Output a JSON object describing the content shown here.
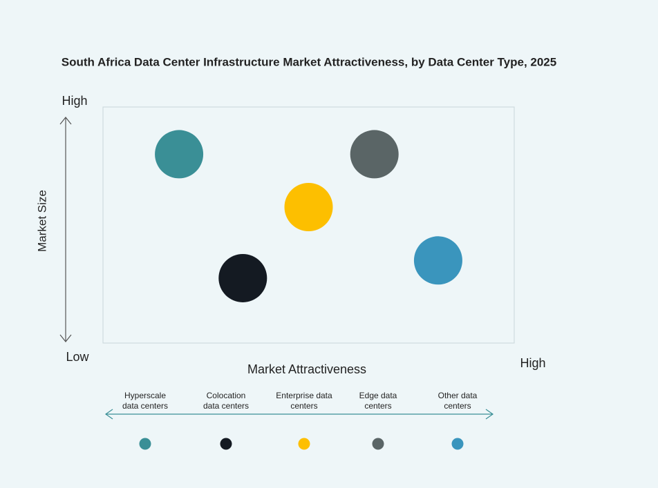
{
  "chart_data": {
    "type": "scatter",
    "title": "South Africa Data Center Infrastructure  Market Attractiveness,  by Data Center Type, 2025",
    "x_axis_label": "Market Attractiveness",
    "y_axis_label": "Market Size",
    "y_high_label": "High",
    "low_label": "Low",
    "x_high_label": "High",
    "xlim": [
      0,
      100
    ],
    "ylim": [
      0,
      100
    ],
    "series": [
      {
        "name": "Hyperscale data centers",
        "color": "#3a8f96",
        "x": [
          18.5
        ],
        "values": [
          80
        ]
      },
      {
        "name": "Colocation data centers",
        "color": "#141a22",
        "x": [
          34
        ],
        "values": [
          27.5
        ]
      },
      {
        "name": "Enterprise data centers",
        "color": "#fdbf00",
        "x": [
          50
        ],
        "values": [
          57.6
        ]
      },
      {
        "name": "Edge data centers",
        "color": "#5a6566",
        "x": [
          66
        ],
        "values": [
          80
        ]
      },
      {
        "name": "Other data centers",
        "color": "#3a95bd",
        "x": [
          81.5
        ],
        "values": [
          35
        ]
      }
    ]
  }
}
